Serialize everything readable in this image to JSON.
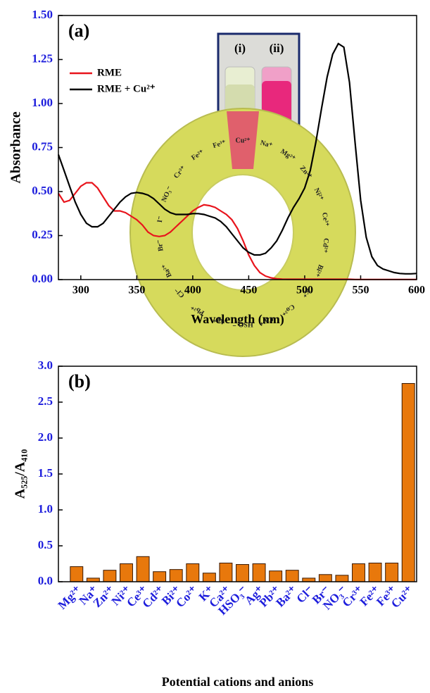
{
  "chart_data": [
    {
      "type": "line",
      "panel_label": "(a)",
      "x_label": "Wavelength (nm)",
      "y_label": "Absorbance",
      "x": [
        280,
        285,
        290,
        295,
        300,
        305,
        310,
        315,
        320,
        325,
        330,
        335,
        340,
        345,
        350,
        355,
        360,
        365,
        370,
        375,
        380,
        385,
        390,
        395,
        400,
        405,
        410,
        415,
        420,
        425,
        430,
        435,
        440,
        445,
        450,
        455,
        460,
        465,
        470,
        475,
        480,
        485,
        490,
        495,
        500,
        505,
        510,
        515,
        520,
        525,
        530,
        535,
        540,
        545,
        550,
        555,
        560,
        565,
        570,
        575,
        580,
        585,
        590,
        595,
        600
      ],
      "series": [
        {
          "name": "RME",
          "color": "#e8141c",
          "values": [
            0.49,
            0.44,
            0.45,
            0.49,
            0.53,
            0.55,
            0.55,
            0.52,
            0.47,
            0.42,
            0.39,
            0.39,
            0.38,
            0.36,
            0.34,
            0.31,
            0.27,
            0.25,
            0.245,
            0.25,
            0.27,
            0.3,
            0.33,
            0.36,
            0.39,
            0.41,
            0.425,
            0.42,
            0.41,
            0.39,
            0.37,
            0.34,
            0.29,
            0.22,
            0.14,
            0.08,
            0.04,
            0.02,
            0.01,
            0.005,
            0.003,
            0.002,
            0.002,
            0.002,
            0.002,
            0.002,
            0.002,
            0.002,
            0.002,
            0.002,
            0.002,
            0.002,
            0.002,
            0.001,
            0.001,
            0.001,
            0.001,
            0.001,
            0.001,
            0.001,
            0.001,
            0.001,
            0.001,
            0.001,
            0.001
          ]
        },
        {
          "name": "RME + Cu²⁺",
          "color": "#000000",
          "values": [
            0.71,
            0.62,
            0.53,
            0.44,
            0.37,
            0.32,
            0.3,
            0.3,
            0.32,
            0.36,
            0.4,
            0.44,
            0.47,
            0.49,
            0.495,
            0.49,
            0.48,
            0.46,
            0.43,
            0.4,
            0.38,
            0.37,
            0.37,
            0.37,
            0.375,
            0.375,
            0.37,
            0.36,
            0.35,
            0.33,
            0.3,
            0.26,
            0.22,
            0.18,
            0.155,
            0.14,
            0.14,
            0.15,
            0.18,
            0.22,
            0.28,
            0.35,
            0.41,
            0.46,
            0.52,
            0.62,
            0.78,
            0.97,
            1.15,
            1.28,
            1.34,
            1.32,
            1.12,
            0.78,
            0.45,
            0.24,
            0.13,
            0.08,
            0.06,
            0.05,
            0.04,
            0.035,
            0.033,
            0.033,
            0.035
          ]
        }
      ],
      "xlim": [
        280,
        600
      ],
      "xticks": [
        300,
        350,
        400,
        450,
        500,
        550,
        600
      ],
      "ylim": [
        0,
        1.5
      ],
      "yticks": [
        {
          "value": 0,
          "label": "0.00"
        },
        0.25,
        {
          "value": 0.5,
          "label": "0.50"
        },
        0.75,
        {
          "value": 1,
          "label": "1.00"
        },
        1.25,
        {
          "value": 1.5,
          "label": "1.50"
        }
      ],
      "legend": "upper left",
      "inset_labels": [
        "(i)",
        "(ii)"
      ]
    },
    {
      "type": "bar",
      "panel_label": "(b)",
      "x_label": "Potential cations and anions",
      "y_label": "A₅₂₅/A₄₁₀",
      "categories": [
        "Mg²⁺",
        "Na⁺",
        "Zn²⁺",
        "Ni²⁺",
        "Ce³⁺",
        "Cd²⁺",
        "Bi²⁺",
        "Co²⁺",
        "K⁺",
        "Ca²⁺",
        "HSO₃⁻",
        "Ag⁺",
        "Pb²⁺",
        "Ba²⁺",
        "Cl⁻",
        "Br⁻",
        "NO₃⁻",
        "Cr³⁺",
        "Fe²⁺",
        "Fe³⁺",
        "Cu²⁺"
      ],
      "values": [
        0.21,
        0.05,
        0.16,
        0.25,
        0.35,
        0.14,
        0.17,
        0.25,
        0.12,
        0.26,
        0.24,
        0.25,
        0.15,
        0.16,
        0.05,
        0.1,
        0.09,
        0.25,
        0.26,
        0.26,
        2.76
      ],
      "color": "#e8780c",
      "ylim": [
        0,
        3
      ],
      "yticks": [
        {
          "value": 0,
          "label": "0.0"
        },
        0.5,
        {
          "value": 1,
          "label": "1.0"
        },
        1.5,
        {
          "value": 2,
          "label": "2.0"
        },
        2.5,
        {
          "value": 3,
          "label": "3.0"
        }
      ],
      "ring_labels": [
        "Cu²⁺",
        "Na⁺",
        "Mg²⁺",
        "Zn²⁺",
        "Ni²⁺",
        "Ce³⁺",
        "Cd²⁺",
        "Bi²⁺",
        "K⁺",
        "Co²⁺",
        "Ca²⁺",
        "HSO₃⁻",
        "Ag⁺",
        "Pb²⁺",
        "Cl⁻",
        "Ba²⁺",
        "Br⁻",
        "I⁻",
        "NO₃⁻",
        "Cr³⁺",
        "Fe²⁺",
        "Fe³⁺"
      ]
    }
  ]
}
